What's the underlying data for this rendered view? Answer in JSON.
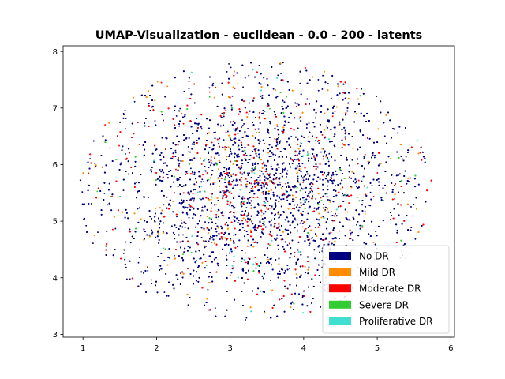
{
  "chart_data": {
    "type": "scatter",
    "title": "UMAP-Visualization - euclidean - 0.0 - 200 - latents",
    "xlabel": "",
    "ylabel": "",
    "xlim": [
      0.73,
      6.05
    ],
    "ylim": [
      2.95,
      8.1
    ],
    "xticks": [
      "1",
      "2",
      "3",
      "4",
      "5",
      "6"
    ],
    "yticks": [
      "3",
      "4",
      "5",
      "6",
      "7",
      "8"
    ],
    "grid": false,
    "legend_position": "lower-right",
    "cluster": {
      "center": [
        3.35,
        5.55
      ],
      "x_range": [
        0.95,
        5.8
      ],
      "y_range": [
        3.2,
        7.9
      ],
      "approx_point_count": 9000
    },
    "series": [
      {
        "name": "No DR",
        "color": "#000080",
        "share": 0.74
      },
      {
        "name": "Mild DR",
        "color": "#ff8c00",
        "share": 0.07
      },
      {
        "name": "Moderate DR",
        "color": "#ff0000",
        "share": 0.14
      },
      {
        "name": "Severe DR",
        "color": "#32cd32",
        "share": 0.03
      },
      {
        "name": "Proliferative DR",
        "color": "#40e0d0",
        "share": 0.02
      }
    ]
  }
}
